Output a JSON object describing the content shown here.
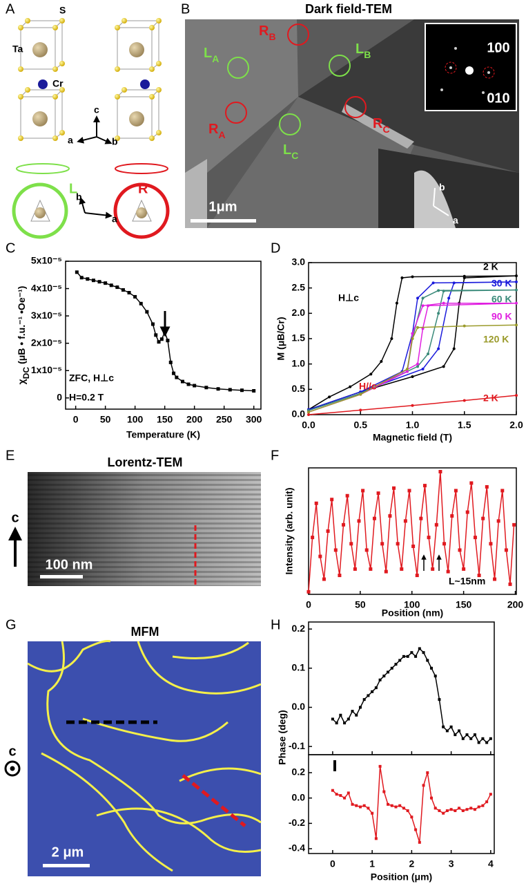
{
  "panel_labels": [
    "A",
    "B",
    "C",
    "D",
    "E",
    "F",
    "G",
    "H"
  ],
  "panel_a": {
    "atom_labels": [
      "S",
      "Ta",
      "Cr"
    ],
    "axis_labels": [
      "c",
      "a",
      "b"
    ],
    "chirality_labels": [
      "L",
      "R"
    ],
    "plane_axis_labels": [
      "b",
      "a"
    ]
  },
  "panel_b": {
    "title": "Dark field-TEM",
    "domains": [
      {
        "name": "R",
        "sub": "B"
      },
      {
        "name": "L",
        "sub": "A"
      },
      {
        "name": "L",
        "sub": "B"
      },
      {
        "name": "R",
        "sub": "A"
      },
      {
        "name": "L",
        "sub": "C"
      },
      {
        "name": "R",
        "sub": "C"
      }
    ],
    "inset_labels": [
      "100",
      "010"
    ],
    "scale_bar": "1μm",
    "axis_labels": [
      "b",
      "a"
    ]
  },
  "panel_e": {
    "title": "Lorentz-TEM",
    "axis_label": "c",
    "scale_bar": "100 nm"
  },
  "panel_g": {
    "title": "MFM",
    "axis_label": "c",
    "scale_bar": "2 μm"
  },
  "chart_data": [
    {
      "type": "line",
      "xlabel": "Temperature (K)",
      "ylabel": {
        "symbol": "χ",
        "sub": "DC",
        "rest": "(μB • f.u.⁻¹ •Oe⁻¹)"
      },
      "xlim": [
        -17,
        312
      ],
      "ylim": [
        -4.1e-06,
        5e-05
      ],
      "xticks": [
        0,
        50,
        100,
        150,
        200,
        250,
        300
      ],
      "yticks": [
        0,
        {
          "value": 1e-05,
          "label": "1x10⁻⁵"
        },
        {
          "value": 2e-05,
          "label": "2x10⁻⁵"
        },
        {
          "value": 3e-05,
          "label": "3x10⁻⁵"
        },
        {
          "value": 4e-05,
          "label": "4x10⁻⁵"
        },
        {
          "value": 5e-05,
          "label": "5x10⁻⁵"
        }
      ],
      "color": "#000000",
      "x": [
        2,
        10,
        20,
        30,
        40,
        50,
        60,
        70,
        80,
        90,
        100,
        110,
        120,
        130,
        135,
        140,
        145,
        150,
        155,
        160,
        165,
        170,
        180,
        190,
        200,
        220,
        240,
        260,
        280,
        300
      ],
      "values": [
        4.6e-05,
        4.4e-05,
        4.35e-05,
        4.3e-05,
        4.25e-05,
        4.2e-05,
        4.12e-05,
        4.05e-05,
        3.95e-05,
        3.85e-05,
        3.7e-05,
        3.45e-05,
        3.15e-05,
        2.7e-05,
        2.3e-05,
        2.05e-05,
        2.15e-05,
        2.4e-05,
        2.1e-05,
        1.3e-05,
        9e-06,
        7.5e-06,
        6e-06,
        5e-06,
        4.5e-06,
        3.8e-06,
        3.3e-06,
        3e-06,
        2.8e-06,
        2.6e-06
      ],
      "annotations": [
        "ZFC, H⊥c",
        "H=0.2 T"
      ]
    },
    {
      "type": "line",
      "xlabel": "Magnetic field (T)",
      "ylabel": "M (μB/Cr)",
      "xlim": [
        0,
        2
      ],
      "ylim": [
        0,
        3
      ],
      "xticks": [
        {
          "value": 0,
          "label": "0.0"
        },
        0.5,
        {
          "value": 1,
          "label": "1.0"
        },
        1.5,
        {
          "value": 2,
          "label": "2.0"
        }
      ],
      "yticks": [
        {
          "value": 0,
          "label": "0.0"
        },
        0.5,
        {
          "value": 1,
          "label": "1.0"
        },
        1.5,
        {
          "value": 2,
          "label": "2.0"
        },
        2.5,
        {
          "value": 3,
          "label": "3.0"
        }
      ],
      "series": [
        {
          "name": "2 K",
          "color": "#000000",
          "x": [
            0,
            0.2,
            0.4,
            0.6,
            0.7,
            0.8,
            0.85,
            0.9,
            1.0,
            1.5,
            2.0,
            1.5,
            1.45,
            1.4,
            1.3,
            1.0,
            0.5,
            0
          ],
          "values": [
            0.1,
            0.35,
            0.55,
            0.8,
            1.05,
            1.5,
            2.2,
            2.7,
            2.72,
            2.73,
            2.74,
            2.7,
            2.2,
            1.3,
            0.95,
            0.75,
            0.45,
            0.1
          ]
        },
        {
          "name": "30 K",
          "color": "#1a1adb",
          "x": [
            0,
            0.5,
            0.9,
            1.0,
            1.05,
            1.2,
            2.0,
            1.4,
            1.35,
            1.25,
            1.1,
            0.5,
            0
          ],
          "values": [
            0.1,
            0.45,
            0.85,
            1.6,
            2.3,
            2.6,
            2.62,
            2.6,
            2.3,
            1.3,
            0.9,
            0.45,
            0.1
          ]
        },
        {
          "name": "60 K",
          "color": "#3a8a7a",
          "x": [
            0,
            0.5,
            0.95,
            1.0,
            1.1,
            1.25,
            2.0,
            1.3,
            1.25,
            1.15,
            1.05,
            0.5,
            0
          ],
          "values": [
            0.08,
            0.42,
            0.85,
            1.5,
            2.3,
            2.45,
            2.46,
            2.44,
            2.0,
            1.2,
            0.95,
            0.42,
            0.08
          ]
        },
        {
          "name": "90 K",
          "color": "#e020e0",
          "x": [
            0,
            0.5,
            0.95,
            1.0,
            1.1,
            1.3,
            2.0,
            1.15,
            1.1,
            1.05,
            0.5,
            0
          ],
          "values": [
            0.05,
            0.4,
            0.85,
            1.6,
            2.15,
            2.2,
            2.2,
            2.15,
            1.7,
            1.0,
            0.4,
            0.05
          ]
        },
        {
          "name": "120 K",
          "color": "#9a9a2a",
          "x": [
            0,
            0.5,
            0.95,
            1.0,
            1.05,
            1.5,
            2.0
          ],
          "values": [
            0.05,
            0.4,
            0.9,
            1.5,
            1.72,
            1.75,
            1.77
          ]
        },
        {
          "name": "2 K",
          "color": "#e0191f",
          "x": [
            0,
            0.5,
            1.0,
            1.5,
            2.0
          ],
          "values": [
            0,
            0.09,
            0.18,
            0.28,
            0.38
          ]
        }
      ],
      "annotations": [
        {
          "text": "H⊥c",
          "color": "#000000"
        },
        {
          "text": "H//c",
          "color": "#e0191f"
        }
      ]
    },
    {
      "type": "line",
      "xlabel": "Position (nm)",
      "ylabel": "Intensity (arb. unit)",
      "xlim": [
        0,
        201
      ],
      "ylim": [
        0,
        1
      ],
      "xticks": [
        0,
        50,
        100,
        150,
        200
      ],
      "color": "#e0191f",
      "x": [
        0,
        3.75,
        7.5,
        11.25,
        15,
        18.75,
        22.5,
        26.25,
        30,
        33.75,
        37.5,
        41.25,
        45,
        48.75,
        52.5,
        56.25,
        60,
        63.75,
        67.5,
        71.25,
        75,
        78.75,
        82.5,
        86.25,
        90,
        93.75,
        97.5,
        101.25,
        105,
        108.75,
        112.5,
        116.25,
        120,
        123.75,
        127.5,
        131.25,
        135,
        138.75,
        142.5,
        146.25,
        150,
        153.75,
        157.5,
        161.25,
        165,
        168.75,
        172.5,
        176.25,
        180,
        183.75,
        187.5,
        191.25,
        195,
        198.75
      ],
      "values": [
        0.02,
        0.45,
        0.72,
        0.3,
        0.12,
        0.5,
        0.75,
        0.35,
        0.15,
        0.55,
        0.78,
        0.4,
        0.2,
        0.58,
        0.82,
        0.35,
        0.2,
        0.6,
        0.8,
        0.4,
        0.18,
        0.62,
        0.84,
        0.4,
        0.2,
        0.58,
        0.82,
        0.38,
        0.15,
        0.6,
        0.86,
        0.45,
        0.2,
        0.55,
        0.97,
        0.4,
        0.18,
        0.62,
        0.82,
        0.35,
        0.2,
        0.65,
        0.88,
        0.45,
        0.15,
        0.6,
        0.85,
        0.4,
        0.12,
        0.58,
        0.82,
        0.35,
        0.08,
        0.55
      ],
      "annotations": [
        "L~15nm"
      ]
    },
    {
      "type": "line",
      "ylabel": "Phase (deg)",
      "xlim": [
        -0.61,
        4.09
      ],
      "ylim": [
        -0.121,
        0.218
      ],
      "xticks": [
        0,
        1,
        2,
        3,
        4
      ],
      "yticks": [
        -0.1,
        {
          "value": 0,
          "label": "0.0"
        },
        0.1,
        0.2
      ],
      "color": "#000000",
      "x": [
        0,
        0.1,
        0.2,
        0.3,
        0.4,
        0.5,
        0.6,
        0.7,
        0.8,
        0.9,
        1.0,
        1.1,
        1.2,
        1.3,
        1.4,
        1.5,
        1.6,
        1.7,
        1.8,
        1.9,
        2.0,
        2.1,
        2.2,
        2.3,
        2.4,
        2.5,
        2.6,
        2.7,
        2.8,
        2.9,
        3.0,
        3.1,
        3.2,
        3.3,
        3.4,
        3.5,
        3.6,
        3.7,
        3.8,
        3.9,
        4.0
      ],
      "values": [
        -0.03,
        -0.04,
        -0.02,
        -0.04,
        -0.03,
        -0.01,
        -0.02,
        0.0,
        0.02,
        0.03,
        0.04,
        0.05,
        0.07,
        0.08,
        0.09,
        0.1,
        0.11,
        0.12,
        0.13,
        0.13,
        0.14,
        0.13,
        0.15,
        0.14,
        0.12,
        0.1,
        0.08,
        0.02,
        -0.05,
        -0.06,
        -0.05,
        -0.07,
        -0.06,
        -0.08,
        -0.07,
        -0.08,
        -0.07,
        -0.09,
        -0.08,
        -0.09,
        -0.08
      ]
    },
    {
      "type": "line",
      "xlabel": "Position (μm)",
      "xlim": [
        -0.61,
        4.09
      ],
      "ylim": [
        -0.438,
        0.342
      ],
      "xticks": [
        0,
        1,
        2,
        3,
        4
      ],
      "yticks": [
        -0.4,
        -0.2,
        {
          "value": 0,
          "label": "0.0"
        },
        0.2
      ],
      "color": "#e0191f",
      "x": [
        0,
        0.1,
        0.2,
        0.3,
        0.4,
        0.5,
        0.6,
        0.7,
        0.8,
        0.9,
        1.0,
        1.1,
        1.2,
        1.3,
        1.4,
        1.5,
        1.6,
        1.7,
        1.8,
        1.9,
        2.0,
        2.1,
        2.2,
        2.3,
        2.4,
        2.5,
        2.6,
        2.7,
        2.8,
        2.9,
        3.0,
        3.1,
        3.2,
        3.3,
        3.4,
        3.5,
        3.6,
        3.7,
        3.8,
        3.9,
        4.0
      ],
      "values": [
        0.06,
        0.03,
        0.02,
        0.0,
        0.04,
        -0.05,
        -0.06,
        -0.07,
        -0.06,
        -0.08,
        -0.12,
        -0.32,
        0.25,
        0.05,
        -0.05,
        -0.06,
        -0.07,
        -0.06,
        -0.08,
        -0.1,
        -0.15,
        -0.25,
        -0.35,
        0.1,
        0.2,
        0.0,
        -0.08,
        -0.1,
        -0.12,
        -0.1,
        -0.09,
        -0.1,
        -0.08,
        -0.1,
        -0.09,
        -0.08,
        -0.09,
        -0.07,
        -0.06,
        -0.03,
        0.03
      ]
    }
  ]
}
